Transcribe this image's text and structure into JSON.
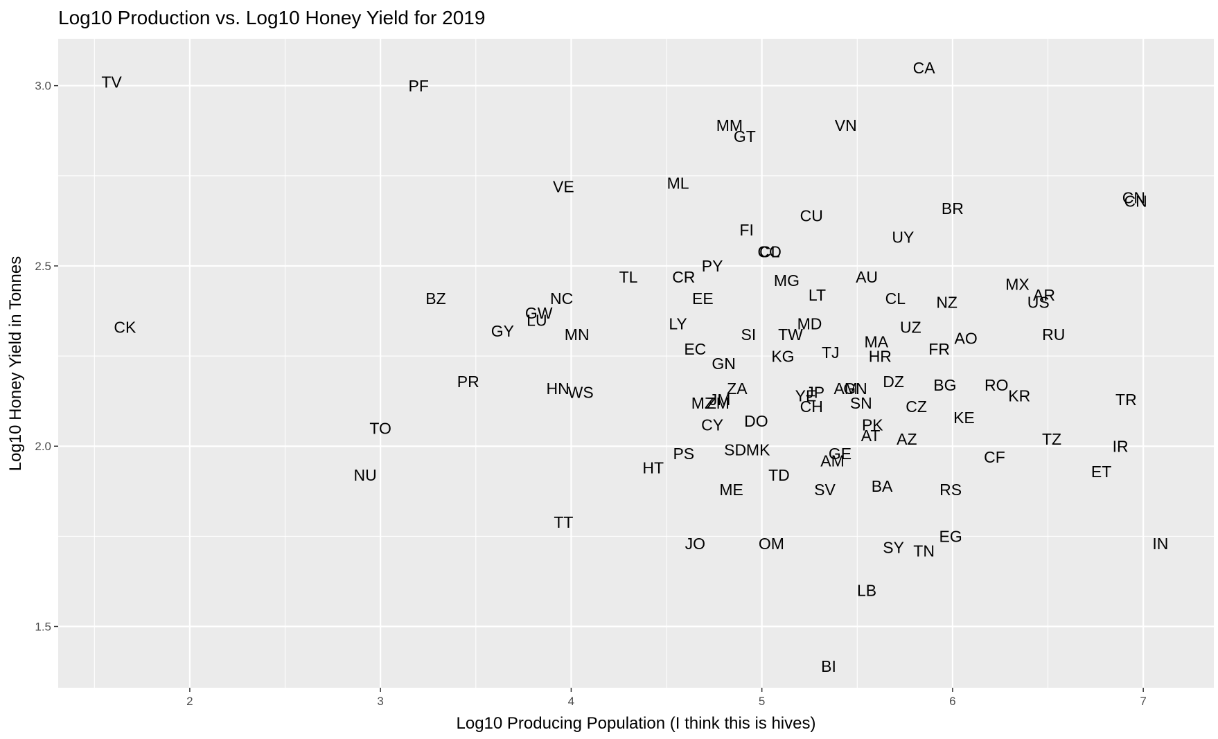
{
  "chart_data": {
    "type": "scatter",
    "title": "Log10 Production vs. Log10 Honey Yield for 2019",
    "xlabel": "Log10 Producing Population (I think this is hives)",
    "ylabel": "Log10 Honey Yield in Tonnes",
    "xlim": [
      1.31,
      7.37
    ],
    "ylim": [
      1.33,
      3.13
    ],
    "x_ticks": [
      2,
      3,
      4,
      5,
      6,
      7
    ],
    "x_tick_labels": [
      "2",
      "3",
      "4",
      "5",
      "6",
      "7"
    ],
    "y_ticks": [
      1.5,
      2.0,
      2.5,
      3.0
    ],
    "y_tick_labels": [
      "1.5",
      "2.0",
      "2.5",
      "3.0"
    ],
    "grid": true,
    "legend": "none",
    "background": "#ebebeb",
    "grid_color": "#ffffff",
    "points": [
      {
        "label": "TV",
        "x": 1.59,
        "y": 3.01
      },
      {
        "label": "PF",
        "x": 3.2,
        "y": 3.0
      },
      {
        "label": "CA",
        "x": 5.85,
        "y": 3.05
      },
      {
        "label": "MM",
        "x": 4.83,
        "y": 2.89
      },
      {
        "label": "VN",
        "x": 5.44,
        "y": 2.89
      },
      {
        "label": "GT",
        "x": 4.91,
        "y": 2.86
      },
      {
        "label": "ML",
        "x": 4.56,
        "y": 2.73
      },
      {
        "label": "VE",
        "x": 3.96,
        "y": 2.72
      },
      {
        "label": "CN",
        "x": 6.95,
        "y": 2.69
      },
      {
        "label": "CN",
        "x": 6.96,
        "y": 2.68
      },
      {
        "label": "BR",
        "x": 6.0,
        "y": 2.66
      },
      {
        "label": "CU",
        "x": 5.26,
        "y": 2.64
      },
      {
        "label": "FI",
        "x": 4.92,
        "y": 2.6
      },
      {
        "label": "UY",
        "x": 5.74,
        "y": 2.58
      },
      {
        "label": "CL",
        "x": 5.04,
        "y": 2.54
      },
      {
        "label": "CO",
        "x": 5.04,
        "y": 2.54
      },
      {
        "label": "PY",
        "x": 4.74,
        "y": 2.5
      },
      {
        "label": "TL",
        "x": 4.3,
        "y": 2.47
      },
      {
        "label": "CR",
        "x": 4.59,
        "y": 2.47
      },
      {
        "label": "AU",
        "x": 5.55,
        "y": 2.47
      },
      {
        "label": "MG",
        "x": 5.13,
        "y": 2.46
      },
      {
        "label": "MX",
        "x": 6.34,
        "y": 2.45
      },
      {
        "label": "LT",
        "x": 5.29,
        "y": 2.42
      },
      {
        "label": "AR",
        "x": 6.48,
        "y": 2.42
      },
      {
        "label": "BZ",
        "x": 3.29,
        "y": 2.41
      },
      {
        "label": "NC",
        "x": 3.95,
        "y": 2.41
      },
      {
        "label": "EE",
        "x": 4.69,
        "y": 2.41
      },
      {
        "label": "CL",
        "x": 5.7,
        "y": 2.41
      },
      {
        "label": "US",
        "x": 6.45,
        "y": 2.4
      },
      {
        "label": "NZ",
        "x": 5.97,
        "y": 2.4
      },
      {
        "label": "GW",
        "x": 3.83,
        "y": 2.37
      },
      {
        "label": "LU",
        "x": 3.82,
        "y": 2.35
      },
      {
        "label": "CK",
        "x": 1.66,
        "y": 2.33
      },
      {
        "label": "LY",
        "x": 4.56,
        "y": 2.34
      },
      {
        "label": "MD",
        "x": 5.25,
        "y": 2.34
      },
      {
        "label": "UZ",
        "x": 5.78,
        "y": 2.33
      },
      {
        "label": "GY",
        "x": 3.64,
        "y": 2.32
      },
      {
        "label": "MN",
        "x": 4.03,
        "y": 2.31
      },
      {
        "label": "SI",
        "x": 4.93,
        "y": 2.31
      },
      {
        "label": "TW",
        "x": 5.15,
        "y": 2.31
      },
      {
        "label": "RU",
        "x": 6.53,
        "y": 2.31
      },
      {
        "label": "AO",
        "x": 6.07,
        "y": 2.3
      },
      {
        "label": "MA",
        "x": 5.6,
        "y": 2.29
      },
      {
        "label": "EC",
        "x": 4.65,
        "y": 2.27
      },
      {
        "label": "FR",
        "x": 5.93,
        "y": 2.27
      },
      {
        "label": "TJ",
        "x": 5.36,
        "y": 2.26
      },
      {
        "label": "KG",
        "x": 5.11,
        "y": 2.25
      },
      {
        "label": "HR",
        "x": 5.62,
        "y": 2.25
      },
      {
        "label": "GN",
        "x": 4.8,
        "y": 2.23
      },
      {
        "label": "PR",
        "x": 3.46,
        "y": 2.18
      },
      {
        "label": "DZ",
        "x": 5.69,
        "y": 2.18
      },
      {
        "label": "BG",
        "x": 5.96,
        "y": 2.17
      },
      {
        "label": "RO",
        "x": 6.23,
        "y": 2.17
      },
      {
        "label": "ZA",
        "x": 4.87,
        "y": 2.16
      },
      {
        "label": "HN",
        "x": 3.93,
        "y": 2.16
      },
      {
        "label": "AM",
        "x": 5.44,
        "y": 2.16
      },
      {
        "label": "GN",
        "x": 5.49,
        "y": 2.16
      },
      {
        "label": "WS",
        "x": 4.05,
        "y": 2.15
      },
      {
        "label": "JP",
        "x": 5.28,
        "y": 2.15
      },
      {
        "label": "YE",
        "x": 5.23,
        "y": 2.14
      },
      {
        "label": "KR",
        "x": 6.35,
        "y": 2.14
      },
      {
        "label": "JM",
        "x": 4.78,
        "y": 2.13
      },
      {
        "label": "TR",
        "x": 6.91,
        "y": 2.13
      },
      {
        "label": "SN",
        "x": 5.52,
        "y": 2.12
      },
      {
        "label": "MZ",
        "x": 4.69,
        "y": 2.12
      },
      {
        "label": "ZM",
        "x": 4.77,
        "y": 2.12
      },
      {
        "label": "CH",
        "x": 5.26,
        "y": 2.11
      },
      {
        "label": "CZ",
        "x": 5.81,
        "y": 2.11
      },
      {
        "label": "KE",
        "x": 6.06,
        "y": 2.08
      },
      {
        "label": "DO",
        "x": 4.97,
        "y": 2.07
      },
      {
        "label": "PK",
        "x": 5.58,
        "y": 2.06
      },
      {
        "label": "CY",
        "x": 4.74,
        "y": 2.06
      },
      {
        "label": "AT",
        "x": 5.57,
        "y": 2.03
      },
      {
        "label": "AZ",
        "x": 5.76,
        "y": 2.02
      },
      {
        "label": "TZ",
        "x": 6.52,
        "y": 2.02
      },
      {
        "label": "TO",
        "x": 3.0,
        "y": 2.05
      },
      {
        "label": "IR",
        "x": 6.88,
        "y": 2.0
      },
      {
        "label": "MK",
        "x": 4.98,
        "y": 1.99
      },
      {
        "label": "SD",
        "x": 4.86,
        "y": 1.99
      },
      {
        "label": "PS",
        "x": 4.59,
        "y": 1.98
      },
      {
        "label": "GE",
        "x": 5.41,
        "y": 1.98
      },
      {
        "label": "CF",
        "x": 6.22,
        "y": 1.97
      },
      {
        "label": "AM",
        "x": 5.37,
        "y": 1.96
      },
      {
        "label": "HT",
        "x": 4.43,
        "y": 1.94
      },
      {
        "label": "ET",
        "x": 6.78,
        "y": 1.93
      },
      {
        "label": "NU",
        "x": 2.92,
        "y": 1.92
      },
      {
        "label": "TD",
        "x": 5.09,
        "y": 1.92
      },
      {
        "label": "BA",
        "x": 5.63,
        "y": 1.89
      },
      {
        "label": "SV",
        "x": 5.33,
        "y": 1.88
      },
      {
        "label": "RS",
        "x": 5.99,
        "y": 1.88
      },
      {
        "label": "ME",
        "x": 4.84,
        "y": 1.88
      },
      {
        "label": "TT",
        "x": 3.96,
        "y": 1.79
      },
      {
        "label": "EG",
        "x": 5.99,
        "y": 1.75
      },
      {
        "label": "IN",
        "x": 7.09,
        "y": 1.73
      },
      {
        "label": "JO",
        "x": 4.65,
        "y": 1.73
      },
      {
        "label": "OM",
        "x": 5.05,
        "y": 1.73
      },
      {
        "label": "SY",
        "x": 5.69,
        "y": 1.72
      },
      {
        "label": "TN",
        "x": 5.85,
        "y": 1.71
      },
      {
        "label": "LB",
        "x": 5.55,
        "y": 1.6
      },
      {
        "label": "BI",
        "x": 5.35,
        "y": 1.39
      }
    ]
  }
}
